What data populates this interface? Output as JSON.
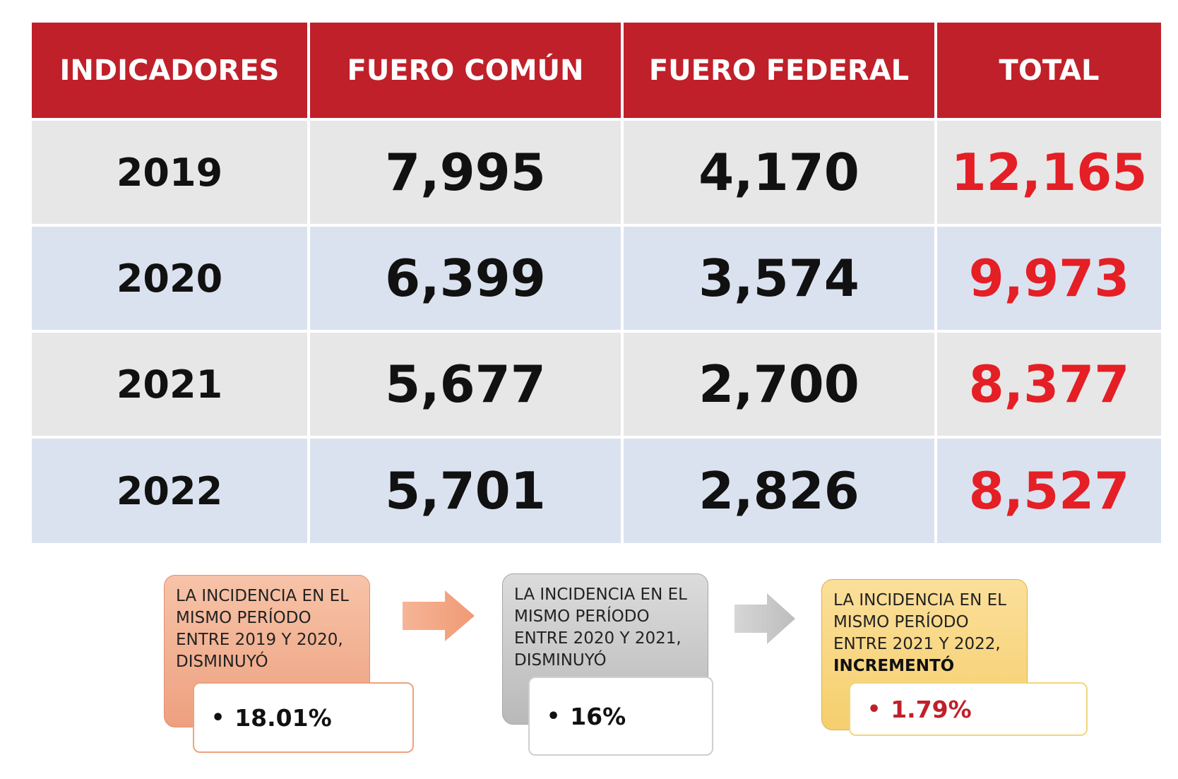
{
  "table": {
    "headers": [
      "INDICADORES",
      "FUERO COMÚN",
      "FUERO FEDERAL",
      "TOTAL"
    ],
    "rows": [
      {
        "year": "2019",
        "comun": "7,995",
        "federal": "4,170",
        "total": "12,165"
      },
      {
        "year": "2020",
        "comun": "6,399",
        "federal": "3,574",
        "total": "9,973"
      },
      {
        "year": "2021",
        "comun": "5,677",
        "federal": "2,700",
        "total": "8,377"
      },
      {
        "year": "2022",
        "comun": "5,701",
        "federal": "2,826",
        "total": "8,527"
      }
    ]
  },
  "callouts": [
    {
      "line1": "LA INCIDENCIA EN EL",
      "line2": "MISMO PERÍODO",
      "line3": "ENTRE 2019 Y 2020,",
      "line4": "DISMINUYÓ",
      "pct": "18.01%",
      "color": "#eda07f"
    },
    {
      "line1": "LA INCIDENCIA EN EL",
      "line2": "MISMO PERÍODO",
      "line3": "ENTRE 2020 Y 2021,",
      "line4": "DISMINUYÓ",
      "pct": "16%",
      "color": "#b9b9b9"
    },
    {
      "line1": "LA INCIDENCIA EN EL",
      "line2": "MISMO PERÍODO",
      "line3": "ENTRE 2021 Y 2022,",
      "line4": "INCREMENTÓ",
      "pct": "1.79%",
      "color": "#f6cf6d"
    }
  ],
  "colors": {
    "header_bg": "#c0202a",
    "total_text": "#e41f25",
    "row_gray": "#e7e7e7",
    "row_blue": "#dbe2ef"
  }
}
